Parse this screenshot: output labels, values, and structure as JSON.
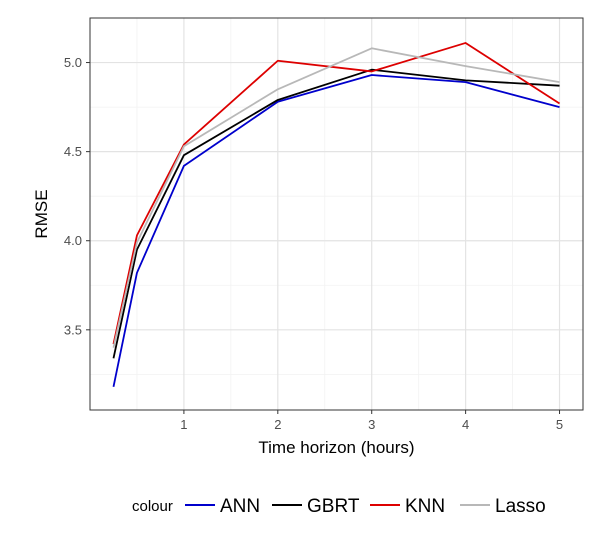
{
  "chart_data": {
    "type": "line",
    "xlabel": "Time horizon (hours)",
    "ylabel": "RMSE",
    "xlim": [
      0.0,
      5.25
    ],
    "ylim": [
      3.05,
      5.25
    ],
    "x_ticks": [
      1,
      2,
      3,
      4,
      5
    ],
    "x_tick_labels": [
      "1",
      "2",
      "3",
      "4",
      "5"
    ],
    "x_minor_ticks": [
      0.5,
      1.5,
      2.5,
      3.5,
      4.5
    ],
    "y_ticks": [
      3.5,
      4.0,
      4.5,
      5.0
    ],
    "y_tick_labels": [
      "3.5",
      "4.0",
      "4.5",
      "5.0"
    ],
    "y_minor_ticks": [
      3.25,
      3.75,
      4.25,
      4.75
    ],
    "grid": true,
    "legend": {
      "position": "bottom",
      "title": "colour"
    },
    "series": [
      {
        "name": "ANN",
        "color": "#0000cc",
        "x": [
          0.25,
          0.5,
          1,
          2,
          3,
          4,
          5
        ],
        "y": [
          3.18,
          3.82,
          4.42,
          4.78,
          4.93,
          4.89,
          4.75
        ]
      },
      {
        "name": "GBRT",
        "color": "#000000",
        "x": [
          0.25,
          0.5,
          1,
          2,
          3,
          4,
          5
        ],
        "y": [
          3.34,
          3.95,
          4.48,
          4.79,
          4.96,
          4.9,
          4.87
        ]
      },
      {
        "name": "KNN",
        "color": "#dd0000",
        "x": [
          0.25,
          0.5,
          1,
          2,
          3,
          4,
          5
        ],
        "y": [
          3.42,
          4.03,
          4.54,
          5.01,
          4.95,
          5.11,
          4.77
        ]
      },
      {
        "name": "Lasso",
        "color": "#b8b8b8",
        "x": [
          0.25,
          0.5,
          1,
          2,
          3,
          4,
          5
        ],
        "y": [
          3.4,
          3.99,
          4.53,
          4.85,
          5.08,
          4.98,
          4.89
        ]
      }
    ]
  }
}
